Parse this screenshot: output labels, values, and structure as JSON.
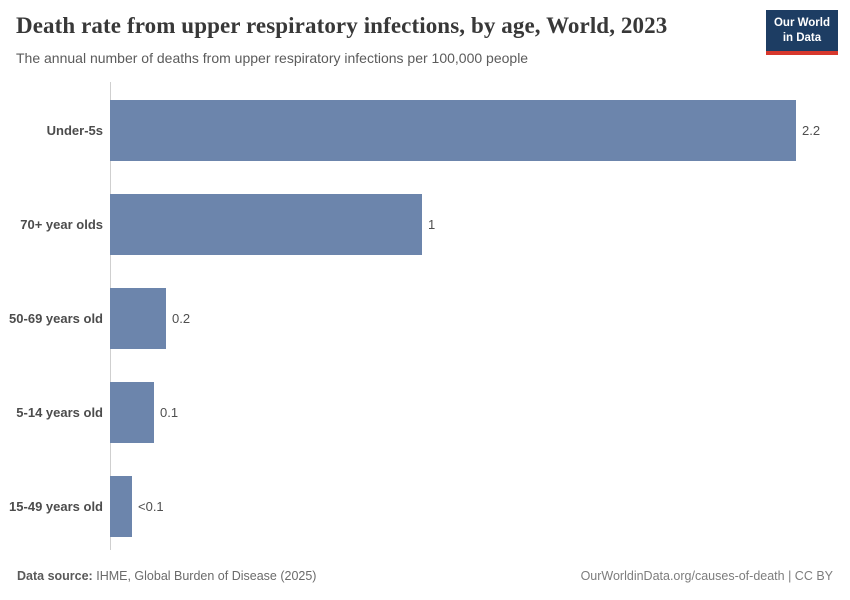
{
  "header": {
    "title": "Death rate from upper respiratory infections, by age, World, 2023",
    "subtitle": "The annual number of deaths from upper respiratory infections per 100,000 people",
    "logo": {
      "line1": "Our World",
      "line2": "in Data",
      "bg_color": "#1d3d63",
      "accent_color": "#d7382d"
    }
  },
  "chart_data": {
    "type": "bar",
    "orientation": "horizontal",
    "title": "Death rate from upper respiratory infections, by age, World, 2023",
    "categories": [
      "Under-5s",
      "70+ year olds",
      "50-69 years old",
      "5-14 years old",
      "15-49 years old"
    ],
    "values": [
      2.2,
      1.0,
      0.18,
      0.14,
      0.07
    ],
    "value_labels": [
      "2.2",
      "1",
      "0.2",
      "0.1",
      "<0.1"
    ],
    "xlabel": "",
    "ylabel": "",
    "xlim": [
      0,
      2.37
    ],
    "grid": false,
    "legend": false,
    "bar_color": "#6c85ac",
    "axis_color": "#cfcfcf"
  },
  "footer": {
    "source_label": "Data source:",
    "source_value": "IHME, Global Burden of Disease (2025)",
    "license": "OurWorldinData.org/causes-of-death | CC BY"
  }
}
